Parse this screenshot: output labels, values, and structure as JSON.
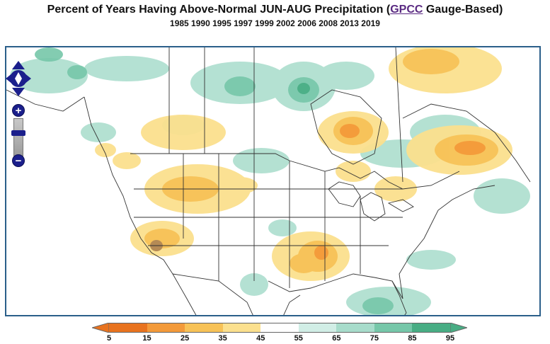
{
  "title": {
    "prefix": "Percent of Years Having Above-Normal JUN-AUG Precipitation (",
    "link": "GPCC",
    "suffix": " Gauge-Based)"
  },
  "subtitle": "1985 1990 1995 1997 1999 2002 2006 2008 2013 2019",
  "controls": {
    "zoom_in": "+",
    "zoom_out": "−"
  },
  "legend": {
    "colors": [
      "#e8731f",
      "#f39a3a",
      "#f7c257",
      "#fbe08e",
      "#ffffff",
      "#d1eee6",
      "#a7dccb",
      "#76c7a9",
      "#48ad84"
    ],
    "labels": [
      "5",
      "15",
      "25",
      "35",
      "45",
      "55",
      "65",
      "75",
      "85",
      "95"
    ]
  }
}
